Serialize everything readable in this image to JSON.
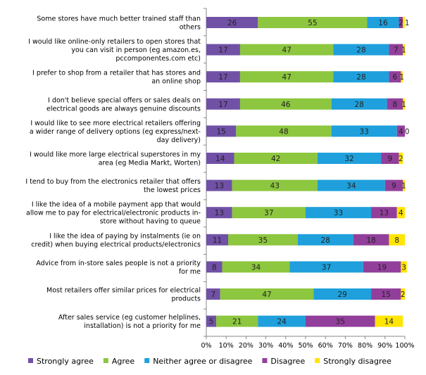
{
  "chart_data": {
    "type": "bar",
    "orientation": "horizontal",
    "stacked": "percent",
    "categories": [
      [
        "Some stores have much better trained staff than",
        "others"
      ],
      [
        "I would like online-only retailers to open stores that",
        "you can visit in person (eg amazon.es,",
        "pccomponentes.com etc)"
      ],
      [
        "I prefer to shop from a retailer that has stores and",
        "an online shop"
      ],
      [
        "I don't believe special offers or sales deals on",
        "electrical goods are always genuine discounts"
      ],
      [
        "I would like to see more electrical retailers offering",
        "a wider range of delivery options (eg express/next-",
        "day delivery)"
      ],
      [
        "I would like more large electrical superstores in my",
        "area (eg Media Markt, Worten)"
      ],
      [
        "I tend to buy from the electronics retailer that offers",
        "the lowest prices"
      ],
      [
        "I like the idea of a mobile payment app that would",
        "allow me to pay for electrical/electronic products in-",
        "store without having to queue"
      ],
      [
        "I like the idea of paying by instalments (ie on",
        "credit) when buying electrical products/electronics"
      ],
      [
        "Advice from in-store sales people is not a priority",
        "for me"
      ],
      [
        "Most retailers offer similar prices for electrical",
        "products"
      ],
      [
        "After sales service (eg customer helplines,",
        "installation)  is not a priority for me"
      ]
    ],
    "series": [
      {
        "name": "Strongly agree",
        "color": "#7151a6",
        "values": [
          26,
          17,
          17,
          17,
          15,
          14,
          13,
          13,
          11,
          8,
          7,
          5
        ]
      },
      {
        "name": "Agree",
        "color": "#8dc63f",
        "values": [
          55,
          47,
          47,
          46,
          48,
          42,
          43,
          37,
          35,
          34,
          47,
          21
        ]
      },
      {
        "name": "Neither agree or disagree",
        "color": "#1fa0dc",
        "values": [
          16,
          28,
          28,
          28,
          33,
          32,
          34,
          33,
          28,
          37,
          29,
          24
        ]
      },
      {
        "name": "Disagree",
        "color": "#923f9b",
        "values": [
          2,
          7,
          6,
          8,
          4,
          9,
          9,
          13,
          18,
          19,
          15,
          35
        ]
      },
      {
        "name": "Strongly disagree",
        "color": "#ffe500",
        "values": [
          1,
          1,
          1,
          1,
          0,
          2,
          1,
          4,
          8,
          3,
          2,
          14
        ]
      }
    ],
    "xticks": [
      "0%",
      "10%",
      "20%",
      "30%",
      "40%",
      "50%",
      "60%",
      "70%",
      "80%",
      "90%",
      "100%"
    ],
    "xlim": [
      0,
      100
    ],
    "legend": "bottom",
    "grid": false
  }
}
